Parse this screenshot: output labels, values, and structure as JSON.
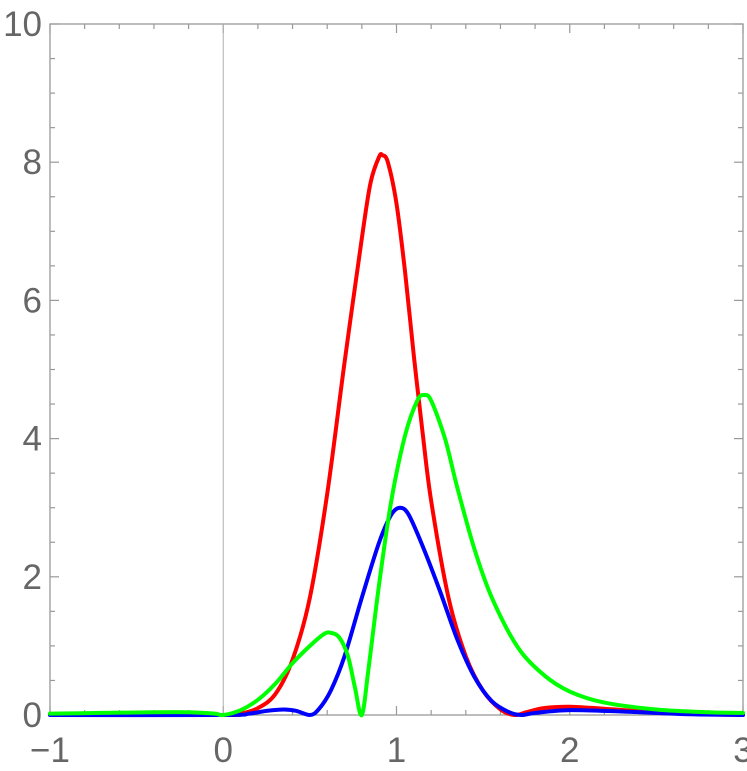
{
  "chart_data": {
    "type": "line",
    "title": "",
    "xlabel": "",
    "ylabel": "",
    "xlim": [
      -1,
      3
    ],
    "ylim": [
      0,
      10
    ],
    "x_ticks": [
      -1,
      0,
      1,
      2,
      3
    ],
    "x_tick_labels": [
      "−1",
      "0",
      "1",
      "2",
      "3"
    ],
    "y_ticks": [
      0,
      2,
      4,
      6,
      8,
      10
    ],
    "y_tick_labels": [
      "0",
      "2",
      "4",
      "6",
      "8",
      "10"
    ],
    "grid": false,
    "vertical_reference_line_at_x": 0,
    "series": [
      {
        "color": "#ff0000",
        "points": [
          [
            -1,
            0.01
          ],
          [
            0,
            0.0
          ],
          [
            0.1,
            0.02
          ],
          [
            0.2,
            0.1
          ],
          [
            0.3,
            0.3
          ],
          [
            0.4,
            0.8
          ],
          [
            0.5,
            1.7
          ],
          [
            0.6,
            3.2
          ],
          [
            0.7,
            5.1
          ],
          [
            0.8,
            6.9
          ],
          [
            0.85,
            7.7
          ],
          [
            0.9,
            8.08
          ],
          [
            0.92,
            8.1
          ],
          [
            0.95,
            8.0
          ],
          [
            1.0,
            7.4
          ],
          [
            1.05,
            6.4
          ],
          [
            1.1,
            5.2
          ],
          [
            1.15,
            4.1
          ],
          [
            1.2,
            3.1
          ],
          [
            1.3,
            1.7
          ],
          [
            1.4,
            0.85
          ],
          [
            1.5,
            0.35
          ],
          [
            1.6,
            0.08
          ],
          [
            1.68,
            0.0
          ],
          [
            1.75,
            0.04
          ],
          [
            1.85,
            0.1
          ],
          [
            2.0,
            0.12
          ],
          [
            2.2,
            0.09
          ],
          [
            2.5,
            0.04
          ],
          [
            2.8,
            0.01
          ],
          [
            3.0,
            0.0
          ]
        ]
      },
      {
        "color": "#0000ff",
        "points": [
          [
            -1,
            0.0
          ],
          [
            0.0,
            0.0
          ],
          [
            0.15,
            0.02
          ],
          [
            0.25,
            0.06
          ],
          [
            0.35,
            0.08
          ],
          [
            0.42,
            0.06
          ],
          [
            0.5,
            0.0
          ],
          [
            0.55,
            0.08
          ],
          [
            0.62,
            0.35
          ],
          [
            0.7,
            0.85
          ],
          [
            0.8,
            1.7
          ],
          [
            0.9,
            2.5
          ],
          [
            0.97,
            2.9
          ],
          [
            1.02,
            3.0
          ],
          [
            1.07,
            2.9
          ],
          [
            1.15,
            2.45
          ],
          [
            1.25,
            1.8
          ],
          [
            1.35,
            1.1
          ],
          [
            1.45,
            0.55
          ],
          [
            1.55,
            0.2
          ],
          [
            1.65,
            0.04
          ],
          [
            1.72,
            0.0
          ],
          [
            1.8,
            0.03
          ],
          [
            2.0,
            0.07
          ],
          [
            2.3,
            0.05
          ],
          [
            2.7,
            0.01
          ],
          [
            3.0,
            0.0
          ]
        ]
      },
      {
        "color": "#00ff00",
        "points": [
          [
            -1,
            0.02
          ],
          [
            -0.7,
            0.03
          ],
          [
            -0.4,
            0.04
          ],
          [
            -0.2,
            0.04
          ],
          [
            -0.05,
            0.02
          ],
          [
            0.0,
            0.0
          ],
          [
            0.1,
            0.07
          ],
          [
            0.2,
            0.22
          ],
          [
            0.3,
            0.45
          ],
          [
            0.4,
            0.75
          ],
          [
            0.5,
            1.0
          ],
          [
            0.58,
            1.17
          ],
          [
            0.62,
            1.19
          ],
          [
            0.67,
            1.12
          ],
          [
            0.72,
            0.85
          ],
          [
            0.76,
            0.4
          ],
          [
            0.8,
            0.0
          ],
          [
            0.84,
            0.7
          ],
          [
            0.9,
            1.9
          ],
          [
            0.97,
            3.1
          ],
          [
            1.05,
            4.05
          ],
          [
            1.12,
            4.55
          ],
          [
            1.16,
            4.63
          ],
          [
            1.2,
            4.55
          ],
          [
            1.28,
            4.0
          ],
          [
            1.35,
            3.3
          ],
          [
            1.45,
            2.4
          ],
          [
            1.55,
            1.7
          ],
          [
            1.7,
            0.98
          ],
          [
            1.85,
            0.58
          ],
          [
            2.0,
            0.34
          ],
          [
            2.2,
            0.18
          ],
          [
            2.5,
            0.08
          ],
          [
            2.8,
            0.04
          ],
          [
            3.0,
            0.03
          ]
        ]
      }
    ]
  }
}
